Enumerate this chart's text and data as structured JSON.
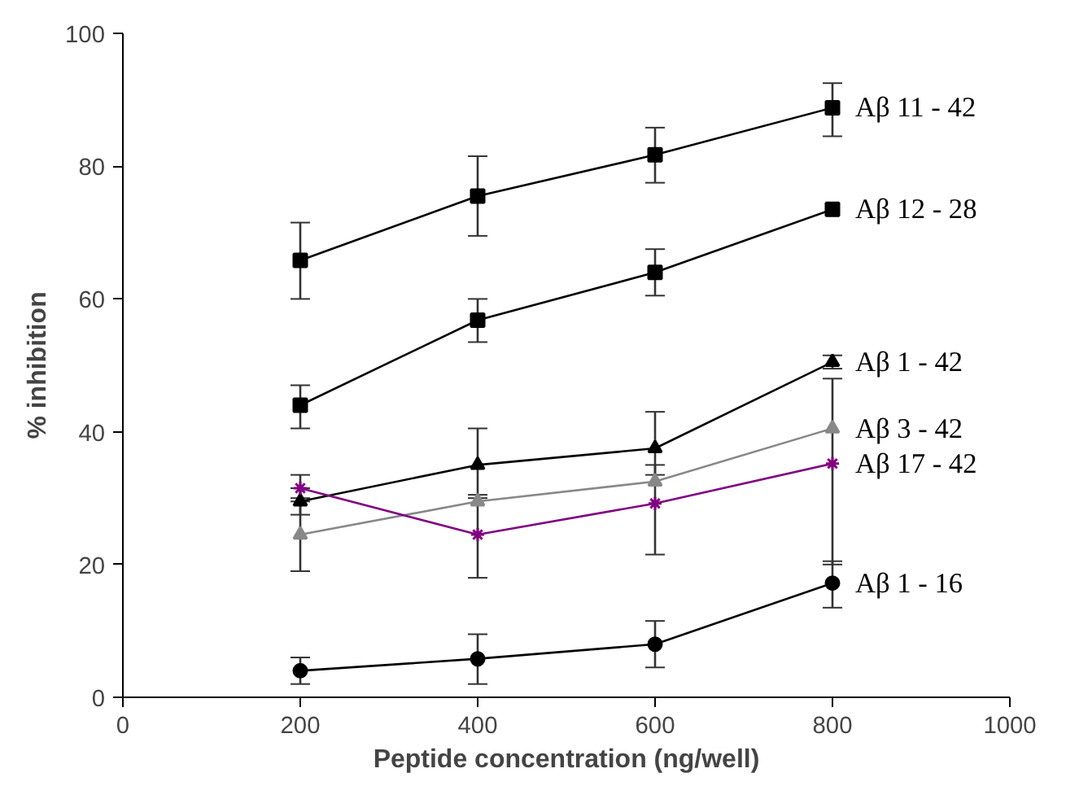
{
  "chart_data": {
    "type": "line",
    "xlabel": "Peptide concentration (ng/well)",
    "ylabel": "% inhibition",
    "x": [
      200,
      400,
      600,
      800
    ],
    "xlim": [
      0,
      1000
    ],
    "xticks": [
      0,
      200,
      400,
      600,
      800,
      1000
    ],
    "ylim": [
      0,
      100
    ],
    "yticks": [
      0,
      20,
      40,
      60,
      80,
      100
    ],
    "grid": false,
    "legend": false,
    "series": [
      {
        "name": "Aβ 11 - 42",
        "color": "#000000",
        "marker": "square",
        "values": [
          65.8,
          75.5,
          81.7,
          88.8
        ],
        "errors": [
          [
            60,
            71.5
          ],
          [
            69.5,
            81.5
          ],
          [
            77.5,
            85.8
          ],
          [
            84.5,
            92.5
          ]
        ]
      },
      {
        "name": "Aβ 12 - 28",
        "color": "#000000",
        "marker": "square",
        "values": [
          44,
          56.8,
          64,
          73.5
        ],
        "errors": [
          [
            40.5,
            47
          ],
          [
            53.5,
            60
          ],
          [
            60.5,
            67.5
          ],
          null
        ]
      },
      {
        "name": "Aβ 1 - 42",
        "color": "#000000",
        "marker": "triangle",
        "values": [
          29.5,
          35,
          37.5,
          50.5
        ],
        "errors": [
          [
            27.5,
            31.5
          ],
          [
            30,
            40.5
          ],
          [
            33.5,
            43
          ],
          [
            49.5,
            51.5
          ]
        ]
      },
      {
        "name": "Aβ 3 - 42",
        "color": "#888888",
        "marker": "triangle",
        "values": [
          24.5,
          29.5,
          32.5,
          40.5
        ],
        "errors": [
          [
            19,
            29.5
          ],
          null,
          null,
          null
        ]
      },
      {
        "name": "Aβ 17 - 42",
        "color": "#800080",
        "marker": "cross",
        "values": [
          31.5,
          24.5,
          29.2,
          35.2
        ],
        "errors": [
          [
            30,
            33.5
          ],
          [
            18,
            30.5
          ],
          [
            21.5,
            35
          ],
          [
            20,
            48
          ]
        ]
      },
      {
        "name": "Aβ 1 - 16",
        "color": "#000000",
        "marker": "circle",
        "values": [
          4,
          5.8,
          8,
          17.2
        ],
        "errors": [
          [
            2,
            6
          ],
          [
            2,
            9.5
          ],
          [
            4.5,
            11.5
          ],
          [
            13.5,
            20.5
          ]
        ]
      }
    ]
  }
}
